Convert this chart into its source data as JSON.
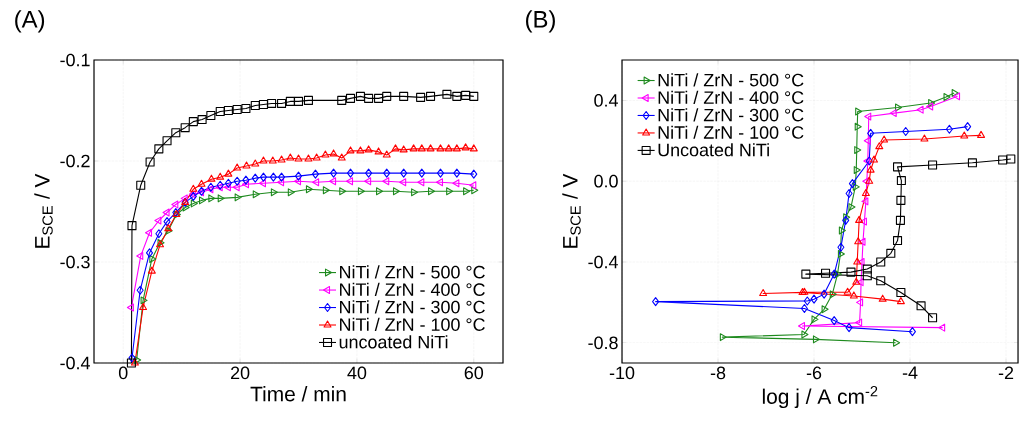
{
  "chart_data": [
    {
      "type": "line",
      "title": "(A)",
      "xlabel": "Time / min",
      "ylabel": "E$_{SCE}$ / V",
      "xlim": [
        -5,
        65
      ],
      "xticks": [
        0,
        20,
        40,
        60
      ],
      "ylim": [
        -0.4,
        -0.1
      ],
      "yticks": [
        -0.4,
        -0.3,
        -0.2,
        -0.1
      ],
      "grid": true,
      "legend": "bottom right",
      "series": [
        {
          "name": "NiTi / ZrN - 500 °C",
          "color": "#1e8a1e",
          "marker": "triangle-right",
          "x": [
            2.3,
            3.4,
            4.9,
            6.3,
            7.7,
            9.1,
            10.6,
            12,
            13.4,
            15,
            16.6,
            19.5,
            22.6,
            25.7,
            28.6,
            31.7,
            34.6,
            37.4,
            40.6,
            43.7,
            46.6,
            49.7,
            52.6,
            55.7,
            58.6,
            60
          ],
          "values": [
            -0.397,
            -0.338,
            -0.297,
            -0.281,
            -0.269,
            -0.253,
            -0.246,
            -0.242,
            -0.239,
            -0.237,
            -0.237,
            -0.236,
            -0.233,
            -0.231,
            -0.231,
            -0.228,
            -0.229,
            -0.23,
            -0.23,
            -0.23,
            -0.23,
            -0.231,
            -0.23,
            -0.23,
            -0.23,
            -0.229
          ]
        },
        {
          "name": "NiTi / ZrN - 400 °C",
          "color": "#ff00ff",
          "marker": "triangle-left",
          "x": [
            1.4,
            3,
            4.5,
            6.1,
            7.5,
            9,
            10.6,
            12,
            13.4,
            15,
            16.6,
            18,
            19.5,
            21.1,
            24,
            27.1,
            30,
            33.1,
            36,
            38.9,
            42,
            45.1,
            48,
            51.1,
            54.3,
            57.1,
            60
          ],
          "values": [
            -0.345,
            -0.294,
            -0.271,
            -0.259,
            -0.251,
            -0.243,
            -0.237,
            -0.233,
            -0.231,
            -0.228,
            -0.226,
            -0.226,
            -0.226,
            -0.223,
            -0.222,
            -0.221,
            -0.22,
            -0.221,
            -0.22,
            -0.22,
            -0.22,
            -0.22,
            -0.221,
            -0.221,
            -0.221,
            -0.222,
            -0.224
          ]
        },
        {
          "name": "NiTi / ZrN - 300 °C",
          "color": "#0000ff",
          "marker": "diamond",
          "x": [
            1.5,
            2.9,
            4.5,
            6.1,
            7.5,
            9,
            10.6,
            12,
            13.4,
            15,
            16.6,
            18,
            19.5,
            21,
            22.6,
            24,
            25.7,
            27.1,
            30,
            32.9,
            36,
            38.9,
            42,
            45.1,
            48,
            51.1,
            54.3,
            57.1,
            60
          ],
          "values": [
            -0.395,
            -0.328,
            -0.291,
            -0.272,
            -0.26,
            -0.251,
            -0.241,
            -0.235,
            -0.23,
            -0.226,
            -0.224,
            -0.222,
            -0.22,
            -0.219,
            -0.217,
            -0.216,
            -0.216,
            -0.216,
            -0.215,
            -0.213,
            -0.212,
            -0.212,
            -0.212,
            -0.212,
            -0.212,
            -0.212,
            -0.212,
            -0.212,
            -0.213
          ]
        },
        {
          "name": "NiTi / ZrN - 100 °C",
          "color": "#ff0000",
          "marker": "triangle",
          "x": [
            2,
            3.4,
            4.9,
            6.3,
            7.7,
            9.1,
            10.6,
            12,
            13.4,
            15.1,
            16.6,
            18,
            19.5,
            21.1,
            22.6,
            24,
            25.6,
            27.1,
            28.6,
            30,
            31.7,
            33.1,
            34.6,
            36,
            37.4,
            38.9,
            40.6,
            42,
            43.7,
            45.1,
            46.6,
            48,
            49.7,
            51.1,
            52.6,
            54.3,
            55.7,
            57.1,
            58.6,
            60
          ],
          "values": [
            -0.4,
            -0.345,
            -0.309,
            -0.283,
            -0.267,
            -0.253,
            -0.241,
            -0.228,
            -0.223,
            -0.218,
            -0.216,
            -0.213,
            -0.207,
            -0.205,
            -0.203,
            -0.2,
            -0.2,
            -0.199,
            -0.197,
            -0.198,
            -0.198,
            -0.197,
            -0.194,
            -0.193,
            -0.197,
            -0.19,
            -0.19,
            -0.189,
            -0.191,
            -0.194,
            -0.188,
            -0.189,
            -0.188,
            -0.188,
            -0.188,
            -0.188,
            -0.188,
            -0.188,
            -0.187,
            -0.188
          ]
        },
        {
          "name": "uncoated NiTi",
          "color": "#000000",
          "marker": "square",
          "x": [
            1.4,
            1.5,
            3,
            4.6,
            6.1,
            7.5,
            9,
            10.6,
            12,
            13.5,
            15,
            16.6,
            18,
            19.5,
            21,
            22.6,
            24,
            25.4,
            27.1,
            28.6,
            30,
            31.7,
            37.4,
            38.9,
            40.6,
            42,
            43.7,
            45.1,
            48,
            50.9,
            52.6,
            55.4,
            57.1,
            58.6,
            60
          ],
          "values": [
            -0.4,
            -0.264,
            -0.224,
            -0.201,
            -0.188,
            -0.18,
            -0.172,
            -0.167,
            -0.161,
            -0.159,
            -0.155,
            -0.151,
            -0.15,
            -0.149,
            -0.148,
            -0.145,
            -0.144,
            -0.143,
            -0.143,
            -0.141,
            -0.141,
            -0.14,
            -0.14,
            -0.138,
            -0.136,
            -0.138,
            -0.138,
            -0.136,
            -0.136,
            -0.137,
            -0.136,
            -0.134,
            -0.136,
            -0.135,
            -0.136
          ]
        }
      ]
    },
    {
      "type": "line",
      "title": "(B)",
      "xlabel": "log j / A cm$^{-2}$",
      "ylabel": "E$_{SCE}$ / V",
      "xlim": [
        -10,
        -1.75
      ],
      "xticks": [
        -10,
        -8,
        -6,
        -4,
        -2
      ],
      "ylim": [
        -0.9,
        0.6
      ],
      "yticks": [
        -0.8,
        -0.4,
        {
          "value": 0,
          "label": "0.0"
        },
        0.4
      ],
      "grid": true,
      "legend": "top left",
      "series": [
        {
          "name": "NiTi / ZrN - 500 °C",
          "color": "#1e8a1e",
          "marker": "triangle-right",
          "x": [
            -4.3,
            -5.97,
            -7.91,
            -6.21,
            -6.0,
            -5.79,
            -5.62,
            -5.51,
            -5.45,
            -5.43,
            -5.34,
            -5.23,
            -5.14,
            -5.12,
            -5.11,
            -5.1,
            -5.09,
            -4.26,
            -3.57,
            -3.25,
            -3.08
          ],
          "values": [
            -0.8,
            -0.783,
            -0.772,
            -0.759,
            -0.684,
            -0.634,
            -0.56,
            -0.46,
            -0.36,
            -0.244,
            -0.178,
            -0.128,
            -0.028,
            0.055,
            0.154,
            0.27,
            0.345,
            0.365,
            0.387,
            0.417,
            0.437
          ]
        },
        {
          "name": "NiTi / ZrN - 400 °C",
          "color": "#ff00ff",
          "marker": "triangle-left",
          "x": [
            -3.32,
            -6.24,
            -5.05,
            -5.03,
            -5.02,
            -5.0,
            -4.98,
            -4.95,
            -4.92,
            -4.9,
            -4.88,
            -4.87,
            -4.86,
            -4.33,
            -3.77,
            -3.57,
            -3.01
          ],
          "values": [
            -0.725,
            -0.717,
            -0.7,
            -0.6,
            -0.5,
            -0.4,
            -0.3,
            -0.2,
            -0.1,
            0.0,
            0.1,
            0.2,
            0.32,
            0.337,
            0.354,
            0.37,
            0.42
          ]
        },
        {
          "name": "NiTi / ZrN - 300 °C",
          "color": "#0000ff",
          "marker": "diamond",
          "x": [
            -3.95,
            -5.27,
            -5.58,
            -6.2,
            -9.3,
            -6.14,
            -6.0,
            -5.79,
            -5.58,
            -5.44,
            -5.34,
            -5.27,
            -5.2,
            -4.85,
            -4.82,
            -4.09,
            -3.18,
            -2.8
          ],
          "values": [
            -0.745,
            -0.725,
            -0.69,
            -0.63,
            -0.596,
            -0.593,
            -0.584,
            -0.559,
            -0.46,
            -0.327,
            -0.194,
            -0.061,
            -0.012,
            0.1,
            0.237,
            0.246,
            0.257,
            0.27
          ]
        },
        {
          "name": "NiTi / ZrN - 100 °C",
          "color": "#ff0000",
          "marker": "triangle",
          "x": [
            -4.19,
            -4.57,
            -5.17,
            -6.24,
            -7.06,
            -6.2,
            -5.3,
            -5.12,
            -5.1,
            -5.08,
            -5.06,
            -4.92,
            -4.85,
            -4.82,
            -4.75,
            -4.64,
            -4.54,
            -3.7,
            -2.87,
            -2.52
          ],
          "values": [
            -0.596,
            -0.584,
            -0.568,
            -0.551,
            -0.556,
            -0.55,
            -0.55,
            -0.5,
            -0.4,
            -0.3,
            -0.194,
            -0.061,
            0.0,
            0.055,
            0.105,
            0.171,
            0.204,
            0.209,
            0.224,
            0.227
          ]
        },
        {
          "name": "Uncoated NiTi",
          "color": "#000000",
          "marker": "square",
          "x": [
            -3.53,
            -3.77,
            -4.19,
            -4.61,
            -4.89,
            -6.17,
            -5.76,
            -5.23,
            -4.89,
            -4.61,
            -4.4,
            -4.26,
            -4.2,
            -4.19,
            -4.18,
            -4.26,
            -3.53,
            -2.7,
            -2.07,
            -1.9
          ],
          "values": [
            -0.676,
            -0.617,
            -0.551,
            -0.493,
            -0.468,
            -0.46,
            -0.456,
            -0.45,
            -0.435,
            -0.4,
            -0.357,
            -0.294,
            -0.194,
            -0.095,
            0.003,
            0.071,
            0.08,
            0.091,
            0.105,
            0.11
          ]
        }
      ]
    }
  ]
}
